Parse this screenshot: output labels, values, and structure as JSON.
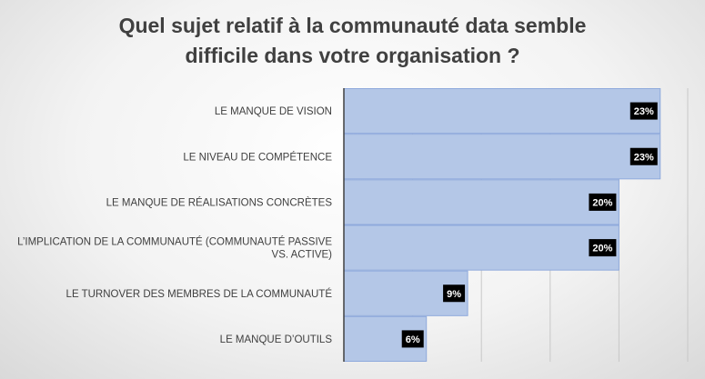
{
  "chart_data": {
    "type": "bar",
    "orientation": "horizontal",
    "title_lines": [
      "Quel sujet relatif à la communauté data semble",
      "difficile dans votre organisation ?"
    ],
    "categories": [
      [
        "LE MANQUE DE VISION"
      ],
      [
        "LE NIVEAU DE COMPÉTENCE"
      ],
      [
        "LE MANQUE DE RÉALISATIONS CONCRÈTES"
      ],
      [
        "L’IMPLICATION DE LA COMMUNAUTÉ (COMMUNAUTÉ PASSIVE",
        "VS. ACTIVE)"
      ],
      [
        "LE TURNOVER DES MEMBRES DE LA COMMUNAUTÉ"
      ],
      [
        "LE MANQUE D’OUTILS"
      ]
    ],
    "values": [
      23,
      23,
      20,
      20,
      9,
      6
    ],
    "data_labels": [
      "23%",
      "23%",
      "20%",
      "20%",
      "9%",
      "6%"
    ],
    "xlim": [
      0,
      25
    ],
    "grid": true,
    "bar_color": "#b4c7e7",
    "bar_edge_color": "#8faadc",
    "label_bg_color": "#000000",
    "label_text_color": "#ffffff"
  }
}
